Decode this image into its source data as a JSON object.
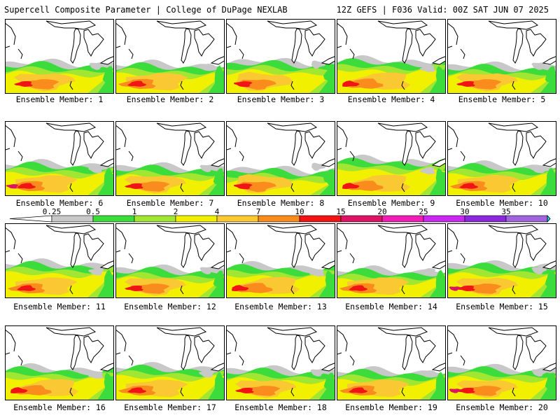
{
  "header": {
    "title": "Supercell Composite Parameter | College of DuPage NEXLAB",
    "run_info": "12Z GEFS | F036 Valid: 00Z SAT JUN 07 2025"
  },
  "legend": {
    "thresholds": [
      "0.25",
      "0.5",
      "1",
      "2",
      "4",
      "7",
      "10",
      "15",
      "20",
      "25",
      "30",
      "35"
    ],
    "colors": {
      "0.25-0.5": "#c8c8c8",
      "0.5-1": "#3cdc3c",
      "1-2": "#a0e632",
      "2-4": "#f0f000",
      "4-7": "#fac832",
      "7-10": "#fa8c1e",
      "10-15": "#f01414",
      "15-20": "#dc1464",
      "20-25": "#f01eb4",
      "25-30": "#c828f0",
      "30-35": "#8c28dc",
      "35+": "#a064dc",
      "extreme": "#00e6e6"
    }
  },
  "panels": [
    {
      "label": "Ensemble Member: 1"
    },
    {
      "label": "Ensemble Member: 2"
    },
    {
      "label": "Ensemble Member: 3"
    },
    {
      "label": "Ensemble Member: 4"
    },
    {
      "label": "Ensemble Member: 5"
    },
    {
      "label": "Ensemble Member: 6"
    },
    {
      "label": "Ensemble Member: 7"
    },
    {
      "label": "Ensemble Member: 8"
    },
    {
      "label": "Ensemble Member: 9"
    },
    {
      "label": "Ensemble Member: 10"
    },
    {
      "label": "Ensemble Member: 11"
    },
    {
      "label": "Ensemble Member: 12"
    },
    {
      "label": "Ensemble Member: 13"
    },
    {
      "label": "Ensemble Member: 14"
    },
    {
      "label": "Ensemble Member: 15"
    },
    {
      "label": "Ensemble Member: 16"
    },
    {
      "label": "Ensemble Member: 17"
    },
    {
      "label": "Ensemble Member: 18"
    },
    {
      "label": "Ensemble Member: 19"
    },
    {
      "label": "Ensemble Member: 20"
    }
  ]
}
